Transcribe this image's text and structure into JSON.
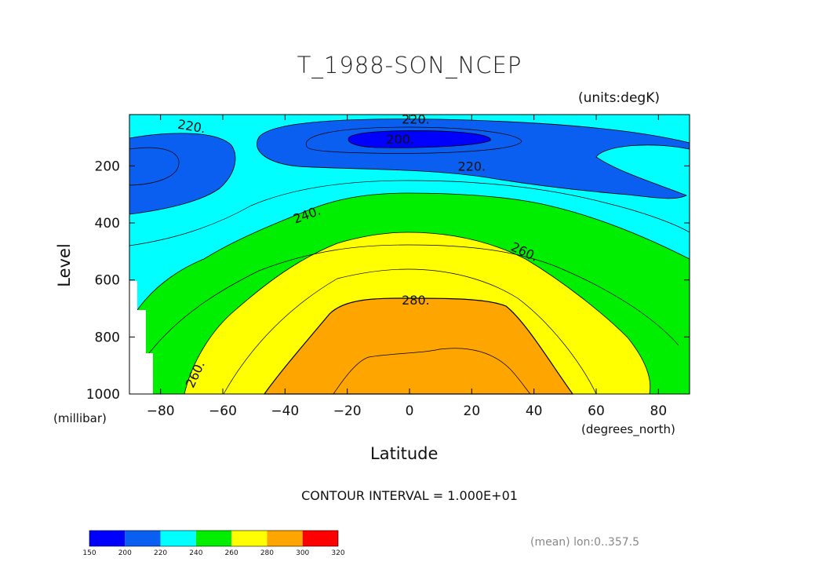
{
  "chart_data": {
    "type": "heatmap",
    "title": "T_1988-SON_NCEP",
    "units_label": "(units:degK)",
    "xlabel": "Latitude",
    "xunit": "(degrees_north)",
    "ylabel": "Level",
    "yunit": "(millibar)",
    "xlim": [
      -90,
      90
    ],
    "ylim": [
      1000,
      20
    ],
    "x_ticks": [
      "-80",
      "-60",
      "-40",
      "-20",
      "0",
      "20",
      "40",
      "60",
      "80"
    ],
    "y_ticks": [
      "200",
      "400",
      "600",
      "800",
      "1000"
    ],
    "contour_interval_text": "CONTOUR INTERVAL = 1.000E+01",
    "footer_note": "(mean) lon:0..357.5",
    "contour_labels": [
      {
        "text": "220.",
        "lat": -70,
        "level": 60
      },
      {
        "text": "220.",
        "lat": 2,
        "level": 35
      },
      {
        "text": "200.",
        "lat": -3,
        "level": 105
      },
      {
        "text": "220.",
        "lat": 20,
        "level": 200
      },
      {
        "text": "240.",
        "lat": -33,
        "level": 370
      },
      {
        "text": "260.",
        "lat": 37,
        "level": 500
      },
      {
        "text": "280.",
        "lat": 2,
        "level": 670
      },
      {
        "text": "260.",
        "lat": -69,
        "level": 930
      }
    ],
    "colorbar": {
      "levels": [
        "150",
        "200",
        "220",
        "240",
        "260",
        "280",
        "300",
        "320"
      ],
      "colors": [
        "#0000ff",
        "#0a5ff0",
        "#00ffff",
        "#00ee00",
        "#ffff00",
        "#ffa500",
        "#ff0000"
      ]
    }
  }
}
